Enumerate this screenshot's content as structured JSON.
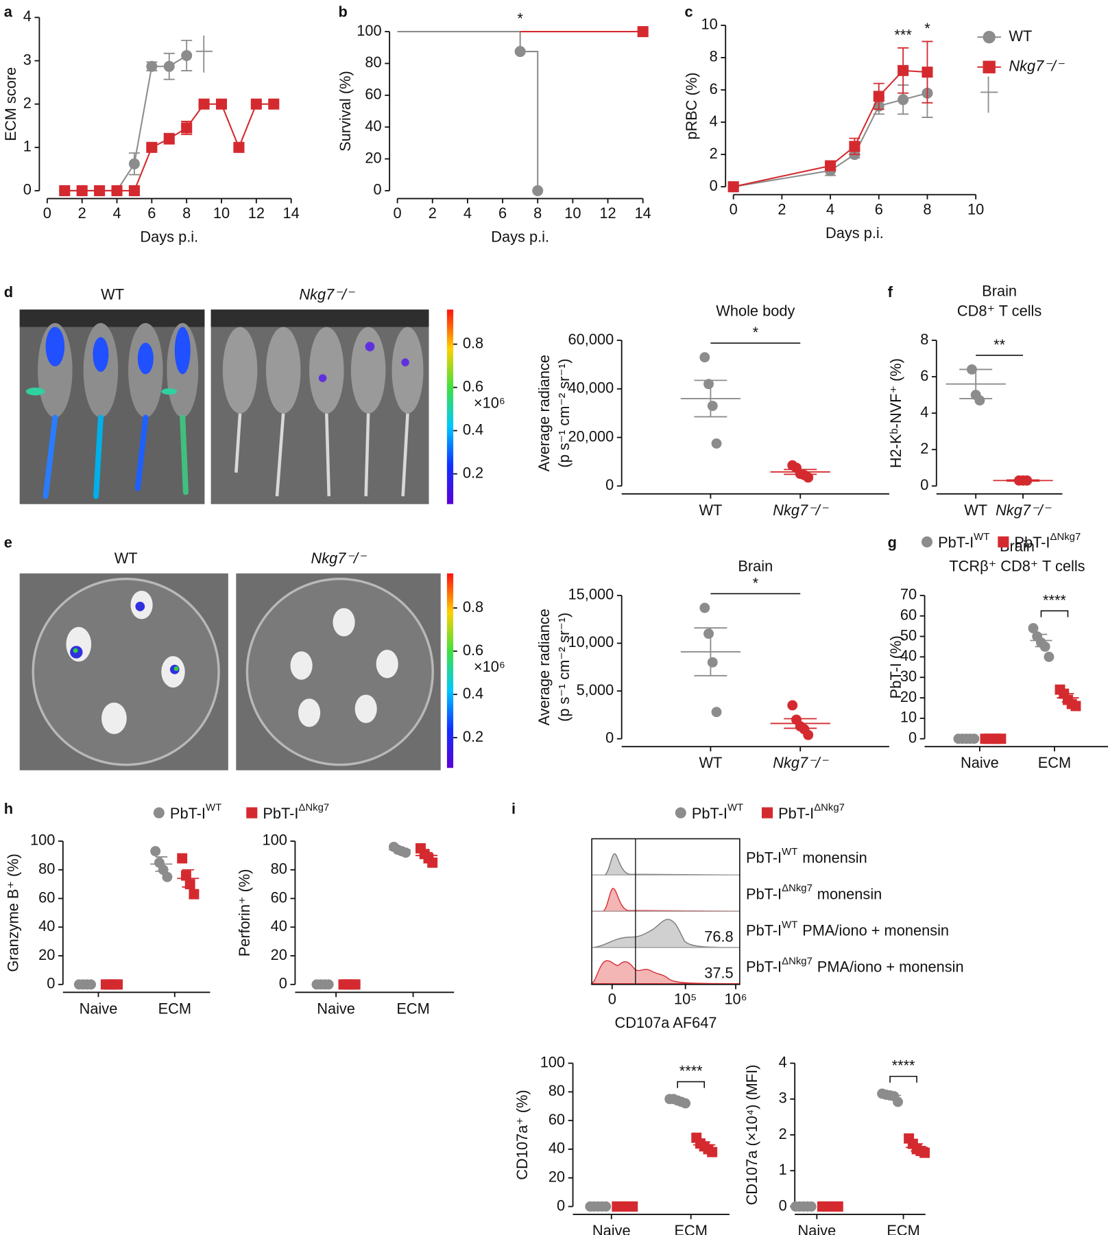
{
  "chart_data": [
    {
      "type": "line",
      "panel": "a",
      "xlabel": "Days p.i.",
      "ylabel": "ECM score",
      "xlim": [
        0,
        14
      ],
      "xticks": [
        0,
        2,
        4,
        6,
        8,
        10,
        12,
        14
      ],
      "ylim": [
        0,
        4
      ],
      "yticks": [
        0,
        1,
        2,
        3,
        4
      ],
      "series": [
        {
          "color": "#8c8c8c",
          "marker": "circle",
          "x": [
            1,
            2,
            3,
            4,
            5,
            6,
            7,
            8
          ],
          "values": [
            0,
            0,
            0,
            0,
            0.62,
            2.87,
            2.87,
            3.12
          ],
          "errors": [
            0,
            0,
            0,
            0,
            0.25,
            0.1,
            0.3,
            0.35
          ]
        },
        {
          "color": "#d42a2f",
          "marker": "square",
          "x": [
            1,
            2,
            3,
            4,
            5,
            6,
            7,
            8,
            9,
            10,
            11,
            12,
            13
          ],
          "values": [
            0,
            0,
            0,
            0,
            0,
            1,
            1.2,
            1.45,
            2,
            2,
            1,
            2,
            2
          ],
          "errors": [
            0,
            0,
            0,
            0,
            0,
            0,
            0.12,
            0.15,
            0,
            0,
            0,
            0,
            0
          ]
        }
      ]
    },
    {
      "type": "step",
      "panel": "b",
      "xlabel": "Days p.i.",
      "ylabel": "Survival (%)",
      "xlim": [
        0,
        14
      ],
      "xticks": [
        0,
        2,
        4,
        6,
        8,
        10,
        12,
        14
      ],
      "ylim": [
        0,
        100
      ],
      "yticks": [
        0,
        20,
        40,
        60,
        80,
        100
      ],
      "series": [
        {
          "color": "#8c8c8c",
          "marker": "circle",
          "x": [
            0,
            7,
            8
          ],
          "values": [
            100,
            87.5,
            0
          ]
        },
        {
          "color": "#d42a2f",
          "marker": "square",
          "x": [
            7,
            14
          ],
          "values": [
            100,
            100
          ]
        }
      ],
      "annotations": [
        {
          "text": "*",
          "x": 7
        }
      ]
    },
    {
      "type": "line",
      "panel": "c",
      "xlabel": "Days p.i.",
      "ylabel": "pRBC (%)",
      "legend": "top-right",
      "xlim": [
        0,
        10
      ],
      "xticks": [
        0,
        2,
        4,
        6,
        8,
        10
      ],
      "ylim": [
        0,
        10
      ],
      "yticks": [
        0,
        2,
        4,
        6,
        8,
        10
      ],
      "series": [
        {
          "name": "WT",
          "color": "#8c8c8c",
          "marker": "circle",
          "x": [
            0,
            4,
            5,
            6,
            7,
            8
          ],
          "values": [
            0,
            1,
            2,
            5,
            5.4,
            5.8
          ],
          "errors": [
            0,
            0.3,
            0.2,
            0.5,
            0.9,
            1.5
          ]
        },
        {
          "name": "Nkg7⁻/⁻",
          "color": "#d42a2f",
          "marker": "square",
          "x": [
            0,
            4,
            5,
            6,
            7,
            8
          ],
          "values": [
            0,
            1.3,
            2.5,
            5.6,
            7.2,
            7.1
          ],
          "errors": [
            0,
            0.2,
            0.5,
            0.8,
            1.4,
            1.9
          ]
        }
      ],
      "annotations": [
        {
          "text": "***",
          "x": 7
        },
        {
          "text": "*",
          "x": 8
        }
      ]
    },
    {
      "type": "image",
      "panel": "d",
      "labels": [
        "WT",
        "Nkg7⁻/⁻"
      ],
      "clim": [
        0.06,
        0.96
      ],
      "colorbar_ticks": [
        0.2,
        0.4,
        0.6,
        0.8
      ],
      "colorbar_unit": "×10⁶"
    },
    {
      "type": "dot",
      "title": "Whole body",
      "ylabel": [
        "Average radiance",
        "(p s⁻¹ cm⁻² sr⁻¹)"
      ],
      "categories": [
        "WT",
        "Nkg7⁻/⁻"
      ],
      "colors": [
        "#8c8c8c",
        "#d42a2f"
      ],
      "values": [
        [
          53000,
          42000,
          33000,
          17500
        ],
        [
          8500,
          7500,
          5000,
          4500,
          3500
        ]
      ],
      "means": [
        36000,
        5800
      ],
      "errors": [
        7500,
        1000
      ],
      "ylim": [
        0,
        60000
      ],
      "yticks": [
        0,
        {
          "value": 20000,
          "label": "20,000"
        },
        {
          "value": 40000,
          "label": "40,000"
        },
        {
          "value": 60000,
          "label": "60,000"
        }
      ],
      "significance": "*"
    },
    {
      "type": "dot",
      "panel": "f",
      "title": [
        "Brain",
        "CD8⁺ T cells"
      ],
      "ylabel": "H2-Kᵇ-NVF⁺ (%)",
      "categories": [
        "WT",
        "Nkg7⁻/⁻"
      ],
      "colors": [
        "#8c8c8c",
        "#d42a2f"
      ],
      "values": [
        [
          6.4,
          5.0,
          4.7
        ],
        [
          0.3,
          0.3,
          0.3
        ]
      ],
      "means": [
        5.6,
        0.3
      ],
      "errors": [
        0.8,
        0.03
      ],
      "ylim": [
        0,
        8
      ],
      "yticks": [
        0,
        2,
        4,
        6,
        8
      ],
      "significance": "**"
    },
    {
      "type": "image",
      "panel": "e",
      "labels": [
        "WT",
        "Nkg7⁻/⁻"
      ],
      "clim": [
        0.06,
        0.96
      ],
      "colorbar_ticks": [
        0.2,
        0.4,
        0.6,
        0.8
      ],
      "colorbar_unit": "×10⁶"
    },
    {
      "type": "dot",
      "title": "Brain",
      "ylabel": [
        "Average radiance",
        "(p s⁻¹ cm⁻² sr⁻¹)"
      ],
      "categories": [
        "WT",
        "Nkg7⁻/⁻"
      ],
      "colors": [
        "#8c8c8c",
        "#d42a2f"
      ],
      "values": [
        [
          13700,
          11000,
          8000,
          2800
        ],
        [
          3500,
          2000,
          1300,
          1000,
          400
        ]
      ],
      "means": [
        9100,
        1600
      ],
      "errors": [
        2500,
        500
      ],
      "ylim": [
        0,
        15000
      ],
      "yticks": [
        0,
        {
          "value": 5000,
          "label": "5,000"
        },
        {
          "value": 10000,
          "label": "10,000"
        },
        {
          "value": 15000,
          "label": "15,000"
        }
      ],
      "significance": "*"
    },
    {
      "type": "dot",
      "panel": "g",
      "legend": "top",
      "title": [
        "Brain",
        "TCRβ⁺ CD8⁺ T cells"
      ],
      "ylabel": "PbT-I (%)",
      "categories": [
        "Naive",
        "ECM"
      ],
      "ylim": [
        0,
        70
      ],
      "yticks": [
        0,
        10,
        20,
        30,
        40,
        50,
        60,
        70
      ],
      "series": [
        {
          "name": "PbT-I",
          "name_sup": "WT",
          "color": "#8c8c8c",
          "marker": "circle",
          "values": [
            [
              0,
              0,
              0,
              0,
              0
            ],
            [
              54,
              50,
              47,
              45,
              40
            ]
          ],
          "means": [
            0,
            48
          ],
          "errors": [
            0,
            3
          ]
        },
        {
          "name": "PbT-I",
          "name_sup": "ΔNkg7",
          "color": "#d42a2f",
          "marker": "square",
          "values": [
            [
              0,
              0,
              0,
              0,
              0
            ],
            [
              24,
              22,
              19,
              17,
              16
            ]
          ],
          "means": [
            0,
            20
          ],
          "errors": [
            0,
            2
          ]
        }
      ],
      "significance": "****"
    },
    {
      "type": "dot",
      "panel": "h",
      "legend": "top",
      "ylabel": "Granzyme B⁺ (%)",
      "categories": [
        "Naive",
        "ECM"
      ],
      "ylim": [
        0,
        100
      ],
      "yticks": [
        0,
        20,
        40,
        60,
        80,
        100
      ],
      "series": [
        {
          "name": "PbT-I",
          "name_sup": "WT",
          "color": "#8c8c8c",
          "marker": "circle",
          "values": [
            [
              0,
              0,
              0,
              0
            ],
            [
              93,
              85,
              80,
              75
            ]
          ],
          "means": [
            0,
            84
          ],
          "errors": [
            0,
            5
          ]
        },
        {
          "name": "PbT-I",
          "name_sup": "ΔNkg7",
          "color": "#d42a2f",
          "marker": "square",
          "values": [
            [
              0,
              0,
              0,
              0
            ],
            [
              88,
              76,
              70,
              63
            ]
          ],
          "means": [
            0,
            74
          ],
          "errors": [
            0,
            6
          ]
        }
      ]
    },
    {
      "type": "dot",
      "ylabel": "Perforin⁺ (%)",
      "categories": [
        "Naive",
        "ECM"
      ],
      "ylim": [
        0,
        100
      ],
      "yticks": [
        0,
        20,
        40,
        60,
        80,
        100
      ],
      "series": [
        {
          "color": "#8c8c8c",
          "marker": "circle",
          "values": [
            [
              0,
              0,
              0,
              0
            ],
            [
              96,
              94,
              93,
              92
            ]
          ],
          "means": [
            0,
            94
          ],
          "errors": [
            0,
            1
          ]
        },
        {
          "color": "#d42a2f",
          "marker": "square",
          "values": [
            [
              0,
              0,
              0,
              0
            ],
            [
              95,
              91,
              88,
              85
            ]
          ],
          "means": [
            0,
            90
          ],
          "errors": [
            0,
            2
          ]
        }
      ]
    },
    {
      "type": "histogram",
      "panel": "i",
      "legend": "top",
      "xlabel": "CD107a AF647",
      "xlim": [
        -7500,
        1200000
      ],
      "xticks": [
        0,
        {
          "value": 100000,
          "label": "10⁵"
        },
        {
          "value": 1000000,
          "label": "10⁶"
        }
      ],
      "gate": 9000,
      "series": [
        {
          "name": "PbT-I",
          "name_sup": "WT",
          "color": "#8c8c8c",
          "marker": "circle"
        },
        {
          "name": "PbT-I",
          "name_sup": "ΔNkg7",
          "color": "#d42a2f",
          "marker": "square"
        }
      ],
      "rows": [
        {
          "name": "PbT-I",
          "name_sup": "WT",
          "suffix": "monensin",
          "color": "#8c8c8c"
        },
        {
          "name": "PbT-I",
          "name_sup": "ΔNkg7",
          "suffix": "monensin",
          "color": "#d42a2f"
        },
        {
          "name": "PbT-I",
          "name_sup": "WT",
          "suffix": "PMA/iono + monensin",
          "color": "#8c8c8c",
          "percent": 76.8
        },
        {
          "name": "PbT-I",
          "name_sup": "ΔNkg7",
          "suffix": "PMA/iono + monensin",
          "color": "#d42a2f",
          "percent": 37.5
        }
      ]
    },
    {
      "type": "dot",
      "ylabel": "CD107a⁺ (%)",
      "categories": [
        "Naive",
        "ECM"
      ],
      "ylim": [
        0,
        100
      ],
      "yticks": [
        0,
        20,
        40,
        60,
        80,
        100
      ],
      "series": [
        {
          "color": "#8c8c8c",
          "marker": "circle",
          "values": [
            [
              0,
              0,
              0,
              0,
              0
            ],
            [
              75,
              75,
              74,
              73,
              72
            ]
          ],
          "means": [
            0,
            74
          ],
          "errors": [
            0,
            1
          ]
        },
        {
          "color": "#d42a2f",
          "marker": "square",
          "values": [
            [
              0,
              0,
              0,
              0,
              0
            ],
            [
              48,
              44,
              42,
              40,
              38
            ]
          ],
          "means": [
            0,
            43
          ],
          "errors": [
            0,
            2
          ]
        }
      ],
      "significance": "****"
    },
    {
      "type": "dot",
      "ylabel": "CD107a (×10⁴) (MFI)",
      "categories": [
        "Naive",
        "ECM"
      ],
      "ylim": [
        0,
        4
      ],
      "yticks": [
        0,
        1,
        2,
        3,
        4
      ],
      "series": [
        {
          "color": "#8c8c8c",
          "marker": "circle",
          "values": [
            [
              0,
              0,
              0,
              0,
              0
            ],
            [
              3.15,
              3.12,
              3.1,
              3.08,
              2.92
            ]
          ],
          "means": [
            0,
            3.1
          ],
          "errors": [
            0,
            0.05
          ]
        },
        {
          "color": "#d42a2f",
          "marker": "square",
          "values": [
            [
              0,
              0,
              0,
              0,
              0
            ],
            [
              1.9,
              1.75,
              1.6,
              1.55,
              1.5
            ]
          ],
          "means": [
            0,
            1.65
          ],
          "errors": [
            0,
            0.1
          ]
        }
      ],
      "significance": "****"
    }
  ]
}
